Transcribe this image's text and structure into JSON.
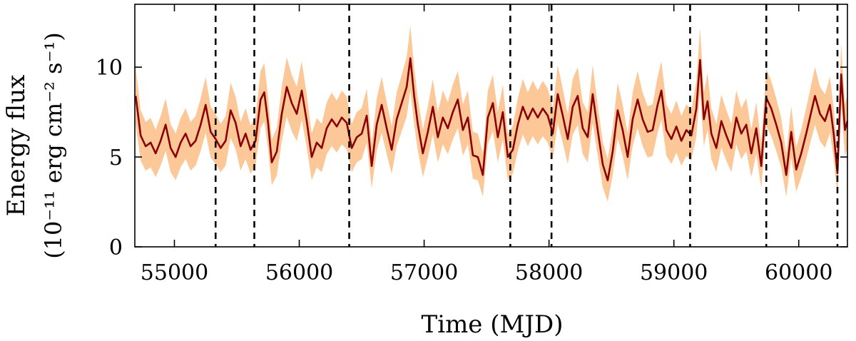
{
  "chart_data": {
    "type": "line",
    "title": "",
    "xlabel": "Time (MJD)",
    "ylabel_line1": "Energy flux",
    "ylabel_line2": "(10⁻¹¹ erg cm⁻² s⁻¹)",
    "xlim": [
      54683,
      60390
    ],
    "ylim": [
      0,
      13.5
    ],
    "x_ticks": [
      55000,
      56000,
      57000,
      58000,
      59000,
      60000
    ],
    "x_tick_labels": [
      "55000",
      "56000",
      "57000",
      "58000",
      "59000",
      "60000"
    ],
    "y_ticks": [
      0,
      5,
      10
    ],
    "y_tick_labels": [
      "0",
      "5",
      "10"
    ],
    "grid": false,
    "legend": "none",
    "series": [
      {
        "role": "flux",
        "color": "#8b0000",
        "band_color": "#fcc898",
        "points": [
          [
            54690,
            8.4
          ],
          [
            54730,
            6.2
          ],
          [
            54770,
            5.6
          ],
          [
            54810,
            5.8
          ],
          [
            54850,
            5.2
          ],
          [
            54890,
            5.9
          ],
          [
            54930,
            6.8
          ],
          [
            54970,
            5.5
          ],
          [
            55010,
            5.0
          ],
          [
            55050,
            5.8
          ],
          [
            55090,
            6.3
          ],
          [
            55130,
            5.6
          ],
          [
            55170,
            5.9
          ],
          [
            55210,
            6.8
          ],
          [
            55250,
            7.9
          ],
          [
            55290,
            6.4
          ],
          [
            55330,
            6.0
          ],
          [
            55370,
            5.5
          ],
          [
            55410,
            5.9
          ],
          [
            55450,
            7.6
          ],
          [
            55490,
            6.9
          ],
          [
            55530,
            5.6
          ],
          [
            55570,
            6.3
          ],
          [
            55610,
            5.4
          ],
          [
            55650,
            5.9
          ],
          [
            55690,
            8.2
          ],
          [
            55720,
            8.6
          ],
          [
            55750,
            6.9
          ],
          [
            55780,
            4.7
          ],
          [
            55820,
            5.3
          ],
          [
            55860,
            7.4
          ],
          [
            55900,
            8.9
          ],
          [
            55940,
            8.0
          ],
          [
            55980,
            7.4
          ],
          [
            56020,
            8.7
          ],
          [
            56060,
            7.0
          ],
          [
            56100,
            5.0
          ],
          [
            56140,
            5.8
          ],
          [
            56180,
            5.5
          ],
          [
            56220,
            6.6
          ],
          [
            56260,
            7.1
          ],
          [
            56300,
            6.7
          ],
          [
            56340,
            7.2
          ],
          [
            56380,
            6.9
          ],
          [
            56420,
            5.5
          ],
          [
            56460,
            6.1
          ],
          [
            56500,
            6.3
          ],
          [
            56540,
            7.3
          ],
          [
            56580,
            4.5
          ],
          [
            56620,
            6.8
          ],
          [
            56660,
            7.9
          ],
          [
            56700,
            6.6
          ],
          [
            56740,
            5.4
          ],
          [
            56780,
            7.1
          ],
          [
            56820,
            8.0
          ],
          [
            56860,
            8.9
          ],
          [
            56890,
            10.5
          ],
          [
            56920,
            8.4
          ],
          [
            56950,
            6.8
          ],
          [
            56990,
            5.2
          ],
          [
            57030,
            6.4
          ],
          [
            57070,
            7.8
          ],
          [
            57110,
            6.1
          ],
          [
            57150,
            7.2
          ],
          [
            57190,
            6.6
          ],
          [
            57230,
            7.5
          ],
          [
            57270,
            8.2
          ],
          [
            57310,
            6.5
          ],
          [
            57350,
            7.2
          ],
          [
            57390,
            5.1
          ],
          [
            57430,
            5.0
          ],
          [
            57470,
            4.0
          ],
          [
            57510,
            7.2
          ],
          [
            57550,
            8.0
          ],
          [
            57590,
            6.1
          ],
          [
            57630,
            7.5
          ],
          [
            57670,
            5.0
          ],
          [
            57710,
            5.4
          ],
          [
            57750,
            6.8
          ],
          [
            57790,
            7.8
          ],
          [
            57830,
            7.1
          ],
          [
            57870,
            7.7
          ],
          [
            57910,
            7.2
          ],
          [
            57950,
            7.7
          ],
          [
            57990,
            7.3
          ],
          [
            58030,
            6.3
          ],
          [
            58070,
            8.5
          ],
          [
            58110,
            7.3
          ],
          [
            58150,
            6.0
          ],
          [
            58190,
            7.8
          ],
          [
            58230,
            8.4
          ],
          [
            58270,
            6.6
          ],
          [
            58310,
            6.1
          ],
          [
            58350,
            8.5
          ],
          [
            58390,
            6.5
          ],
          [
            58430,
            4.6
          ],
          [
            58470,
            3.7
          ],
          [
            58510,
            5.3
          ],
          [
            58550,
            7.6
          ],
          [
            58590,
            6.5
          ],
          [
            58630,
            5.0
          ],
          [
            58670,
            7.1
          ],
          [
            58710,
            8.2
          ],
          [
            58750,
            7.1
          ],
          [
            58790,
            6.4
          ],
          [
            58830,
            6.5
          ],
          [
            58870,
            7.9
          ],
          [
            58900,
            8.7
          ],
          [
            58940,
            6.5
          ],
          [
            58980,
            6.0
          ],
          [
            59020,
            6.7
          ],
          [
            59060,
            5.9
          ],
          [
            59100,
            6.5
          ],
          [
            59140,
            6.2
          ],
          [
            59180,
            7.7
          ],
          [
            59210,
            10.4
          ],
          [
            59240,
            7.1
          ],
          [
            59270,
            8.1
          ],
          [
            59300,
            6.3
          ],
          [
            59340,
            5.5
          ],
          [
            59380,
            7.0
          ],
          [
            59420,
            6.2
          ],
          [
            59460,
            5.5
          ],
          [
            59500,
            7.2
          ],
          [
            59540,
            6.3
          ],
          [
            59580,
            6.8
          ],
          [
            59620,
            5.2
          ],
          [
            59660,
            6.6
          ],
          [
            59700,
            4.5
          ],
          [
            59740,
            8.3
          ],
          [
            59780,
            7.7
          ],
          [
            59820,
            6.8
          ],
          [
            59860,
            5.8
          ],
          [
            59900,
            4.0
          ],
          [
            59940,
            6.4
          ],
          [
            59980,
            4.3
          ],
          [
            60020,
            5.2
          ],
          [
            60060,
            6.3
          ],
          [
            60100,
            7.5
          ],
          [
            60130,
            8.4
          ],
          [
            60170,
            7.4
          ],
          [
            60210,
            7.0
          ],
          [
            60250,
            7.9
          ],
          [
            60280,
            6.3
          ],
          [
            60310,
            4.1
          ],
          [
            60340,
            9.6
          ],
          [
            60370,
            6.5
          ],
          [
            60390,
            7.0
          ]
        ]
      }
    ],
    "vertical_lines": [
      55330,
      55640,
      56400,
      57690,
      58020,
      59130,
      59740,
      60310
    ]
  }
}
